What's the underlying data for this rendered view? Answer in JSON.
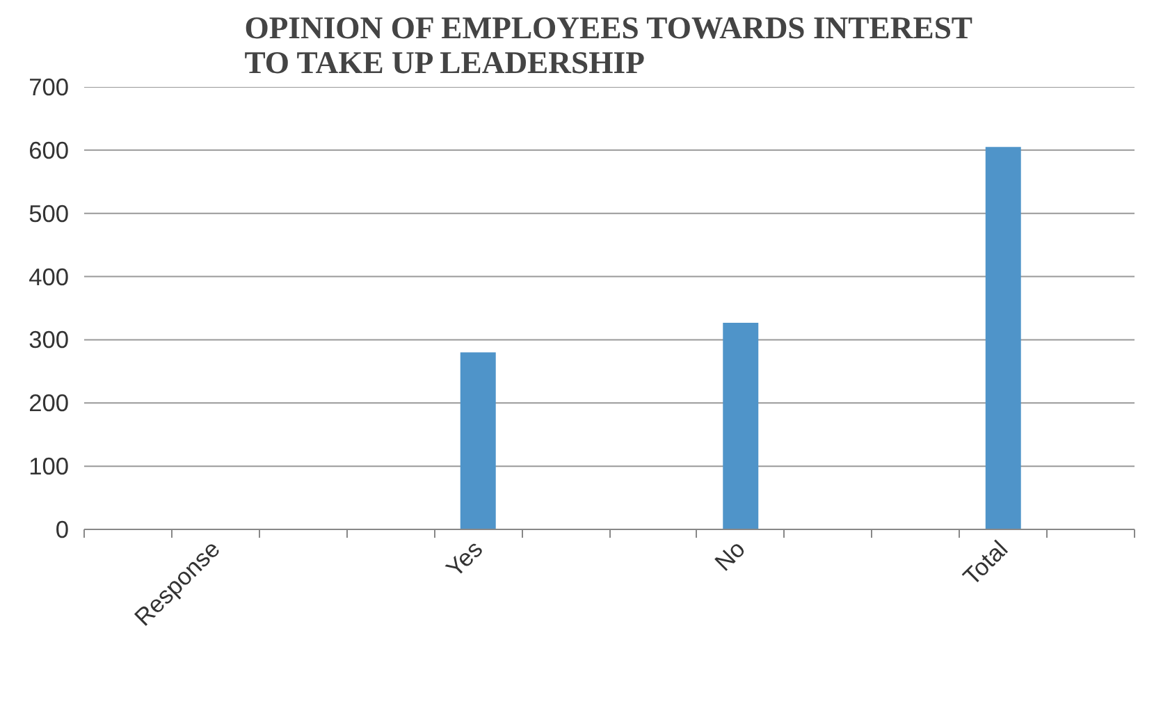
{
  "chart_data": {
    "type": "bar",
    "title": "OPINION OF EMPLOYEES TOWARDS INTEREST\nTO TAKE UP LEADERSHIP",
    "categories": [
      "Response",
      "Yes",
      "No",
      "Total"
    ],
    "values": [
      null,
      280,
      327,
      605
    ],
    "color": "#4f94c9",
    "ylim": [
      0,
      700
    ],
    "yticks": [
      0,
      100,
      200,
      300,
      400,
      500,
      600,
      700
    ],
    "grid": "y"
  }
}
